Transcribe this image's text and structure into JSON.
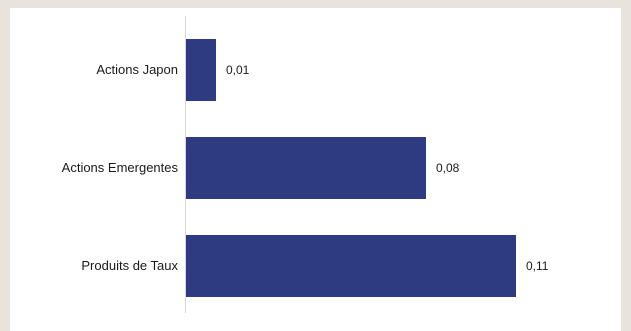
{
  "colors": {
    "bar": "#2f3b80",
    "axis": "#d6d6d6",
    "background": "#ffffff",
    "frame": "#e8e3dd"
  },
  "chart_data": {
    "type": "bar",
    "orientation": "horizontal",
    "categories": [
      "Actions Japon",
      "Actions Emergentes",
      "Produits de Taux"
    ],
    "values": [
      0.01,
      0.08,
      0.11
    ],
    "value_labels": [
      "0,01",
      "0,08",
      "0,11"
    ],
    "xlim": [
      0,
      0.12
    ],
    "grid": false,
    "legend": "none",
    "title": "",
    "xlabel": "",
    "ylabel": ""
  }
}
